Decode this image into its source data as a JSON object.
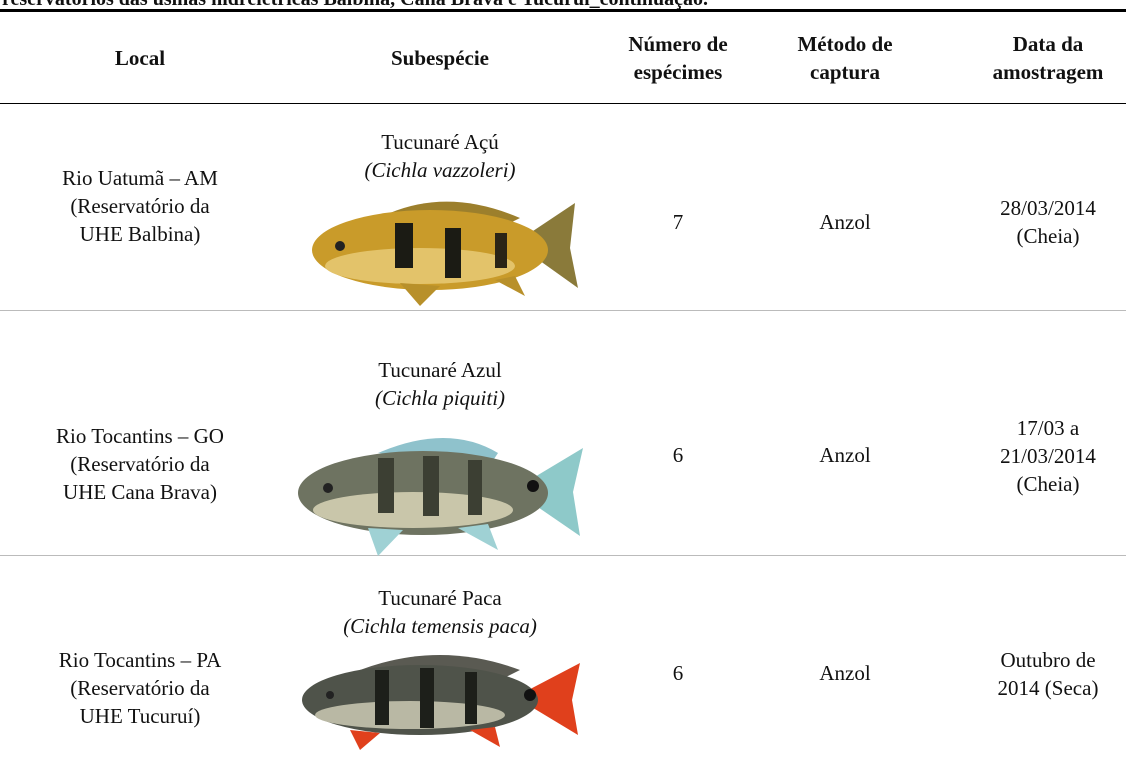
{
  "caption": "reservatórios das usinas hidrelétricas Balbina, Cana Brava e Tucuruí_continuação.",
  "table": {
    "headers": [
      [
        "Local"
      ],
      [
        "Subespécie"
      ],
      [
        "Número de",
        "espécimes"
      ],
      [
        "Método de",
        "captura"
      ],
      [
        "Data da",
        "amostragem"
      ]
    ],
    "rows": [
      {
        "local": [
          "Rio Uatumã – AM",
          "(Reservatório da",
          "UHE Balbina)"
        ],
        "common_name": "Tucunaré Açú",
        "scientific_name": "(Cichla vazzoleri)",
        "count": "7",
        "method": "Anzol",
        "date": [
          "28/03/2014",
          "(Cheia)"
        ]
      },
      {
        "local": [
          "Rio Tocantins – GO",
          "(Reservatório da",
          "UHE Cana Brava)"
        ],
        "common_name": "Tucunaré Azul",
        "scientific_name": "(Cichla piquiti)",
        "count": "6",
        "method": "Anzol",
        "date": [
          "17/03 a",
          "21/03/2014",
          "(Cheia)"
        ]
      },
      {
        "local": [
          "Rio Tocantins – PA",
          "(Reservatório da",
          "UHE Tucuruí)"
        ],
        "common_name": "Tucunaré Paca",
        "scientific_name": "(Cichla temensis paca)",
        "count": "6",
        "method": "Anzol",
        "date": [
          "Outubro de",
          "2014 (Seca)"
        ]
      }
    ]
  }
}
